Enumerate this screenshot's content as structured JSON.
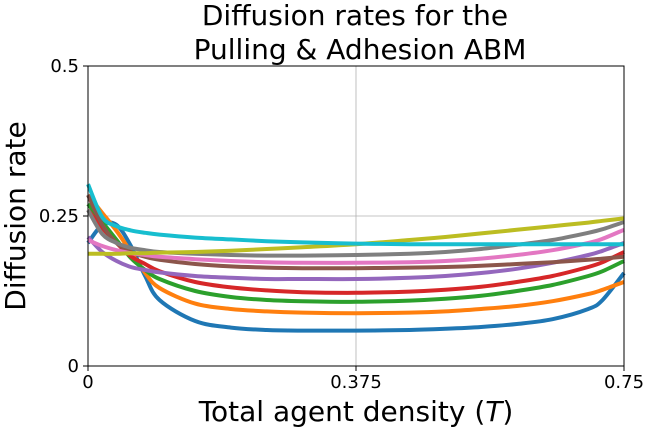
{
  "chart_data": {
    "type": "line",
    "title_lines": [
      "Diffusion rates for the",
      "Pulling & Adhesion ABM"
    ],
    "xlabel_prefix": "Total agent density (",
    "xlabel_var": "T",
    "xlabel_suffix": ")",
    "ylabel": "Diffusion rate",
    "xlim": [
      0,
      0.75
    ],
    "ylim": [
      0,
      0.5
    ],
    "xticks": [
      0,
      0.375,
      0.75
    ],
    "xtick_labels": [
      "0",
      "0.375",
      "0.75"
    ],
    "yticks": [
      0,
      0.25,
      0.5
    ],
    "ytick_labels": [
      "0",
      "0.25",
      "0.5"
    ],
    "grid": true,
    "x": [
      0,
      0.02,
      0.04,
      0.06,
      0.08,
      0.1,
      0.15,
      0.2,
      0.25,
      0.3,
      0.375,
      0.45,
      0.5,
      0.55,
      0.6,
      0.65,
      0.7,
      0.72,
      0.75
    ],
    "series": [
      {
        "color": "#1f77b4",
        "values": [
          0.205,
          0.235,
          0.235,
          0.2,
          0.15,
          0.11,
          0.075,
          0.064,
          0.06,
          0.059,
          0.059,
          0.06,
          0.062,
          0.065,
          0.07,
          0.078,
          0.095,
          0.11,
          0.155
        ]
      },
      {
        "color": "#ff7f0e",
        "values": [
          0.285,
          0.255,
          0.225,
          0.19,
          0.155,
          0.13,
          0.104,
          0.095,
          0.091,
          0.089,
          0.088,
          0.089,
          0.091,
          0.095,
          0.1,
          0.108,
          0.12,
          0.127,
          0.14
        ]
      },
      {
        "color": "#2ca02c",
        "values": [
          0.27,
          0.24,
          0.21,
          0.18,
          0.16,
          0.145,
          0.125,
          0.115,
          0.11,
          0.108,
          0.107,
          0.109,
          0.112,
          0.117,
          0.125,
          0.135,
          0.15,
          0.158,
          0.175
        ]
      },
      {
        "color": "#d62728",
        "values": [
          0.26,
          0.23,
          0.205,
          0.183,
          0.17,
          0.158,
          0.14,
          0.131,
          0.126,
          0.123,
          0.122,
          0.124,
          0.127,
          0.132,
          0.14,
          0.15,
          0.165,
          0.173,
          0.19
        ]
      },
      {
        "color": "#9467bd",
        "values": [
          0.215,
          0.19,
          0.175,
          0.165,
          0.16,
          0.156,
          0.15,
          0.147,
          0.145,
          0.145,
          0.145,
          0.147,
          0.15,
          0.155,
          0.162,
          0.172,
          0.185,
          0.192,
          0.205
        ]
      },
      {
        "color": "#8c564b",
        "values": [
          0.285,
          0.235,
          0.205,
          0.19,
          0.182,
          0.177,
          0.17,
          0.166,
          0.164,
          0.163,
          0.163,
          0.164,
          0.165,
          0.167,
          0.17,
          0.173,
          0.177,
          0.179,
          0.182
        ]
      },
      {
        "color": "#e377c2",
        "values": [
          0.21,
          0.2,
          0.193,
          0.188,
          0.185,
          0.182,
          0.178,
          0.175,
          0.173,
          0.172,
          0.172,
          0.173,
          0.175,
          0.179,
          0.185,
          0.193,
          0.205,
          0.212,
          0.227
        ]
      },
      {
        "color": "#7f7f7f",
        "values": [
          0.26,
          0.22,
          0.205,
          0.197,
          0.193,
          0.19,
          0.187,
          0.185,
          0.184,
          0.184,
          0.185,
          0.187,
          0.19,
          0.195,
          0.202,
          0.21,
          0.222,
          0.228,
          0.24
        ]
      },
      {
        "color": "#bcbd22",
        "values": [
          0.187,
          0.187,
          0.187,
          0.188,
          0.188,
          0.189,
          0.19,
          0.192,
          0.195,
          0.198,
          0.203,
          0.21,
          0.215,
          0.221,
          0.227,
          0.233,
          0.239,
          0.242,
          0.246
        ]
      },
      {
        "color": "#17becf",
        "values": [
          0.303,
          0.248,
          0.233,
          0.226,
          0.222,
          0.219,
          0.214,
          0.211,
          0.208,
          0.206,
          0.204,
          0.203,
          0.203,
          0.203,
          0.203,
          0.203,
          0.203,
          0.203,
          0.203
        ]
      }
    ]
  }
}
